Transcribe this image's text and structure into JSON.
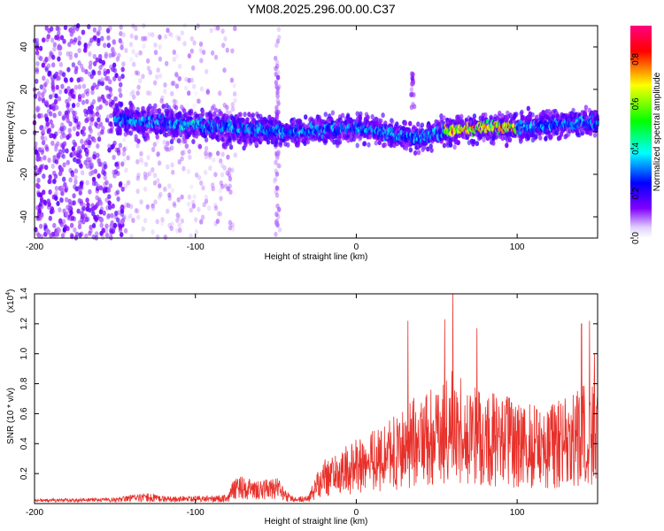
{
  "chart_data": [
    {
      "type": "heatmap",
      "title": "YM08.2025.296.00.00.C37",
      "xlabel": "Height of straight line (km)",
      "ylabel": "Frequency (Hz)",
      "xlim": [
        -200,
        150
      ],
      "ylim": [
        -50,
        50
      ],
      "xticks": [
        -200,
        -100,
        0,
        100
      ],
      "xtick_labels": [
        "-200",
        "-100",
        "0",
        "100"
      ],
      "yticks": [
        -40,
        -20,
        0,
        20,
        40
      ],
      "ytick_labels": [
        "-40",
        "-20",
        "0",
        "20",
        "40"
      ],
      "colorbar": {
        "label": "Normalized spectral amplitude",
        "range": [
          0,
          0.95
        ],
        "ticks": [
          0.0,
          0.2,
          0.4,
          0.6,
          0.8
        ],
        "tick_labels": [
          "0.0",
          "0.2",
          "0.4",
          "0.6",
          "0.8"
        ],
        "colormap_stops": [
          "#e8e0f8",
          "#8000ff",
          "#0000ff",
          "#00ffff",
          "#00ff00",
          "#ffff00",
          "#ff0000",
          "#ff0080"
        ]
      },
      "ridge": {
        "description_points_x": [
          -150,
          -120,
          -100,
          -80,
          -60,
          -40,
          -20,
          0,
          20,
          40,
          60,
          80,
          100,
          120,
          150
        ],
        "description_points_y": [
          6,
          4,
          3,
          2,
          1,
          0,
          1,
          2,
          -1,
          -3,
          1,
          2,
          2,
          3,
          5
        ],
        "peak_amplitude_x_range": [
          55,
          100
        ]
      }
    },
    {
      "type": "line",
      "xlabel": "Height of straight line (km)",
      "ylabel": "SNR (10 * v/v)",
      "y_multiplier_label": "(x10",
      "y_multiplier_exp": "4",
      "y_multiplier_close": ")",
      "xlim": [
        -200,
        150
      ],
      "ylim": [
        0,
        1.4
      ],
      "xticks": [
        -200,
        -100,
        0,
        100
      ],
      "xtick_labels": [
        "-200",
        "-100",
        "0",
        "100"
      ],
      "yticks": [
        0.2,
        0.4,
        0.6,
        0.8,
        1.0,
        1.2,
        1.4
      ],
      "ytick_labels": [
        "0.2",
        "0.4",
        "0.6",
        "0.8",
        "1.0",
        "1.2",
        "1.4"
      ],
      "line_color": "#e8302a",
      "envelope_x": [
        -200,
        -150,
        -140,
        -130,
        -120,
        -100,
        -80,
        -75,
        -70,
        -60,
        -50,
        -45,
        -40,
        -30,
        -25,
        -20,
        -10,
        0,
        20,
        40,
        60,
        80,
        100,
        120,
        150
      ],
      "envelope_y": [
        0.02,
        0.03,
        0.05,
        0.06,
        0.04,
        0.04,
        0.05,
        0.2,
        0.18,
        0.15,
        0.18,
        0.12,
        0.04,
        0.04,
        0.2,
        0.3,
        0.35,
        0.45,
        0.55,
        0.75,
        0.9,
        0.75,
        0.7,
        0.65,
        0.85
      ],
      "peaks": [
        {
          "x": 32,
          "y": 1.22
        },
        {
          "x": 55,
          "y": 1.23
        },
        {
          "x": 60,
          "y": 1.42
        },
        {
          "x": 75,
          "y": 1.17
        },
        {
          "x": 140,
          "y": 1.2
        },
        {
          "x": 145,
          "y": 1.22
        },
        {
          "x": 148,
          "y": 1.0
        }
      ]
    }
  ]
}
